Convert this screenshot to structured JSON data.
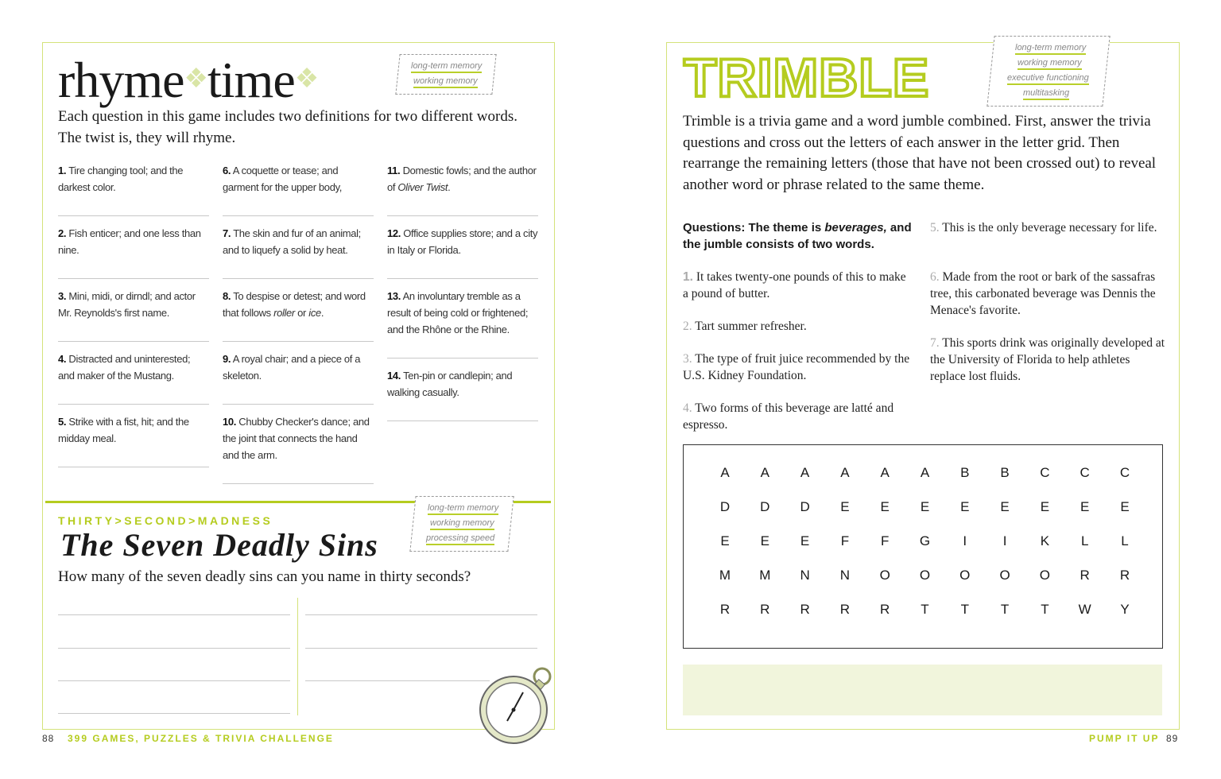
{
  "left_page": {
    "title_word1": "rhyme",
    "title_word2": "time",
    "skills": [
      "long-term memory",
      "working memory"
    ],
    "intro": "Each question in this game includes two definitions for two different words. The twist is, they will rhyme.",
    "columns": [
      [
        {
          "num": "1.",
          "text": "Tire changing tool; and the darkest color."
        },
        {
          "num": "2.",
          "text": "Fish enticer; and one less than nine."
        },
        {
          "num": "3.",
          "text": "Mini, midi, or dirndl; and actor Mr. Reynolds's first name."
        },
        {
          "num": "4.",
          "text": "Distracted and uninterested; and maker of the Mustang."
        },
        {
          "num": "5.",
          "text": "Strike with a fist, hit; and the midday meal."
        }
      ],
      [
        {
          "num": "6.",
          "text": "A coquette or tease; and garment for the upper body,"
        },
        {
          "num": "7.",
          "text": "The skin and fur of an animal; and to liquefy a solid by heat."
        },
        {
          "num": "8.",
          "text": "To despise or detest; and word that follows roller or ice."
        },
        {
          "num": "9.",
          "text": "A royal chair; and a piece of a skeleton."
        },
        {
          "num": "10.",
          "text": "Chubby Checker's dance; and the joint that connects the hand and the arm."
        }
      ],
      [
        {
          "num": "11.",
          "text": "Domestic fowls; and the author of Oliver Twist."
        },
        {
          "num": "12.",
          "text": "Office supplies store; and a city in Italy or Florida."
        },
        {
          "num": "13.",
          "text": "An involuntary tremble as a result of being cold or frightened; and the Rhône or the Rhine."
        },
        {
          "num": "14.",
          "text": "Ten-pin or candlepin; and walking casually."
        }
      ]
    ],
    "section2": {
      "kicker": "THIRTY>SECOND>MADNESS",
      "title": "The Seven Deadly Sins",
      "skills": [
        "long-term memory",
        "working memory",
        "processing speed"
      ],
      "prompt": "How many of the seven deadly sins can you name in thirty seconds?"
    },
    "footer": {
      "page_number": "88",
      "book_title": "399 GAMES, PUZZLES & TRIVIA CHALLENGE"
    }
  },
  "right_page": {
    "title": "TRIMBLE",
    "skills": [
      "long-term memory",
      "working memory",
      "executive functioning",
      "multitasking"
    ],
    "intro": "Trimble is a trivia game and a word jumble combined. First, answer the trivia questions and cross out the letters of each answer in the letter grid. Then rearrange the remaining letters (those that have not been crossed out) to reveal another word or phrase related to the same theme.",
    "questions_heading_a": "Questions: The theme is ",
    "questions_heading_theme": "beverages,",
    "questions_heading_b": " and the jumble consists of two words.",
    "questions": [
      {
        "num": "1.",
        "text": "It takes twenty-one pounds of this to make a pound of butter."
      },
      {
        "num": "2.",
        "text": "Tart summer refresher."
      },
      {
        "num": "3.",
        "text": "The type of fruit juice recommended by the U.S. Kidney Foundation."
      },
      {
        "num": "4.",
        "text": "Two forms of this beverage are latté and espresso."
      },
      {
        "num": "5.",
        "text": "This is the only beverage necessary for life."
      },
      {
        "num": "6.",
        "text": "Made from the root or bark of the sassafras tree, this carbonated beverage was Dennis the Menace's favorite."
      },
      {
        "num": "7.",
        "text": "This sports drink was originally developed at the University of Florida to help athletes replace lost fluids."
      }
    ],
    "letter_grid": [
      [
        "A",
        "A",
        "A",
        "A",
        "A",
        "A",
        "B",
        "B",
        "C",
        "C",
        "C"
      ],
      [
        "D",
        "D",
        "D",
        "E",
        "E",
        "E",
        "E",
        "E",
        "E",
        "E",
        "E"
      ],
      [
        "E",
        "E",
        "E",
        "F",
        "F",
        "G",
        "I",
        "I",
        "K",
        "L",
        "L"
      ],
      [
        "M",
        "M",
        "N",
        "N",
        "O",
        "O",
        "O",
        "O",
        "O",
        "R",
        "R"
      ],
      [
        "R",
        "R",
        "R",
        "R",
        "R",
        "T",
        "T",
        "T",
        "T",
        "W",
        "Y"
      ]
    ],
    "footer": {
      "section": "PUMP IT UP",
      "page_number": "89"
    }
  },
  "colors": {
    "accent": "#b5cc1f",
    "frame": "#d4e27a",
    "answer_box": "#f1f5dc",
    "diamond": "#d9e5a6"
  }
}
